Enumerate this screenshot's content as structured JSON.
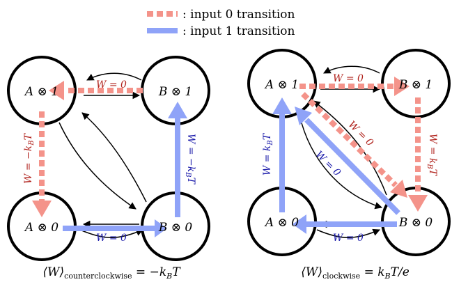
{
  "legend": {
    "red_label": ": input 0 transition",
    "blue_label": ": input 1 transition"
  },
  "colors": {
    "input0": "#f4938a",
    "input1": "#8fa3f8",
    "input0_text": "#b0221c",
    "input1_text": "#1a1aaa"
  },
  "left": {
    "nodes": {
      "a1": "A ⊗ 1",
      "b1": "B ⊗ 1",
      "a0": "A ⊗ 0",
      "b0": "B ⊗ 0"
    },
    "labels": {
      "top": "W = 0",
      "left": "W = −k",
      "left_sub": "B",
      "left_tail": "T",
      "right": "W = −k",
      "right_sub": "B",
      "right_tail": "T",
      "bottom": "W = 0"
    },
    "caption_main": "⟨W⟩",
    "caption_sub": "counterclockwise",
    "caption_rhs": " = −k",
    "caption_rhs_sub": "B",
    "caption_rhs_tail": "T"
  },
  "right": {
    "nodes": {
      "a1": "A ⊗ 1",
      "b1": "B ⊗ 1",
      "a0": "A ⊗ 0",
      "b0": "B ⊗ 0"
    },
    "labels": {
      "top": "W = 0",
      "right": "W = k",
      "right_sub": "B",
      "right_tail": "T",
      "left": "W = k",
      "left_sub": "B",
      "left_tail": "T",
      "diag_red": "W = 0",
      "diag_blue": "W = 0",
      "bottom": "W = 0"
    },
    "caption_main": "⟨W⟩",
    "caption_sub": "clockwise",
    "caption_rhs": " = k",
    "caption_rhs_sub": "B",
    "caption_rhs_tail": "T/e"
  }
}
